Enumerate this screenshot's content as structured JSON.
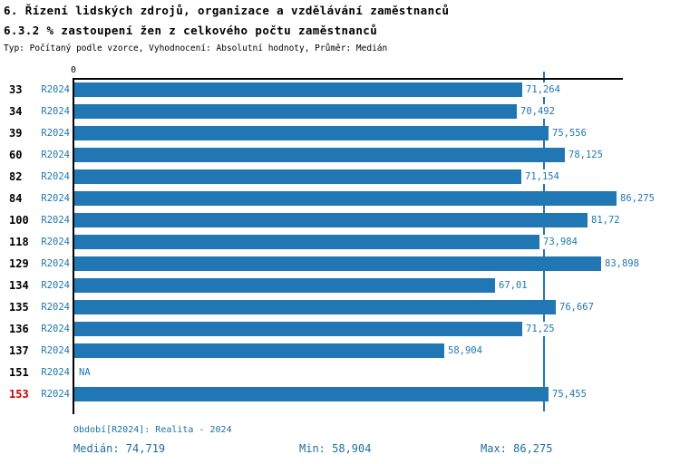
{
  "header": {
    "title": "6. Řízení lidských zdrojů, organizace a vzdělávání zaměstnanců",
    "subtitle": "6.3.2 % zastoupení žen z celkového počtu zaměstnanců",
    "meta": "Typ: Počítaný podle vzorce, Vyhodnocení: Absolutní hodnoty, Průměr: Medián"
  },
  "chart_data": {
    "type": "bar",
    "orientation": "horizontal",
    "axis_zero_label": "0",
    "period_label": "R2024",
    "categories": [
      "33",
      "34",
      "39",
      "60",
      "82",
      "84",
      "100",
      "118",
      "129",
      "134",
      "135",
      "136",
      "137",
      "151",
      "153"
    ],
    "values": [
      71.264,
      70.492,
      75.556,
      78.125,
      71.154,
      86.275,
      81.72,
      73.984,
      83.898,
      67.01,
      76.667,
      71.25,
      58.904,
      null,
      75.455
    ],
    "value_labels": [
      "71,264",
      "70,492",
      "75,556",
      "78,125",
      "71,154",
      "86,275",
      "81,72",
      "73,984",
      "83,898",
      "67,01",
      "76,667",
      "71,25",
      "58,904",
      "NA",
      "75,455"
    ],
    "highlighted_categories": [
      "153"
    ],
    "median": 74.719,
    "min": 58.904,
    "max": 86.275,
    "xlim": [
      0,
      87.3
    ],
    "grid": false,
    "legend": false,
    "bar_color": "#2077b4",
    "median_line_color": "#2077b4",
    "highlight_color": "#cc0000"
  },
  "footer": {
    "period": "Období[R2024]: Realita - 2024",
    "median_label": "Medián: 74,719",
    "min_label": "Min: 58,904",
    "max_label": "Max: 86,275"
  }
}
